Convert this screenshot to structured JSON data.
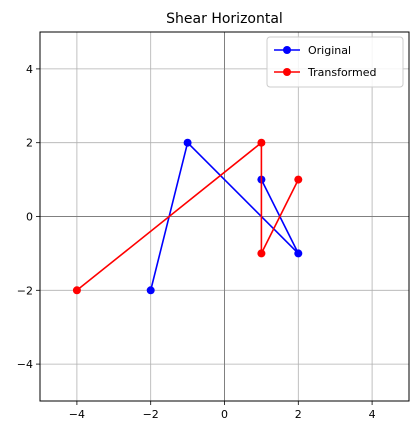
{
  "chart_data": {
    "type": "line",
    "title": "Shear Horizontal",
    "xlabel": "",
    "ylabel": "",
    "xlim": [
      -5,
      5
    ],
    "ylim": [
      -5,
      5
    ],
    "x_ticks": [
      -4,
      -2,
      0,
      2,
      4
    ],
    "y_ticks": [
      -4,
      -2,
      0,
      2,
      4
    ],
    "x_tick_labels": [
      "−4",
      "−2",
      "0",
      "2",
      "4"
    ],
    "y_tick_labels": [
      "−4",
      "−2",
      "0",
      "2",
      "4"
    ],
    "grid": true,
    "axis_lines_at_zero": true,
    "legend_position": "top-right",
    "series": [
      {
        "name": "Original",
        "color": "#0000ff",
        "marker": "circle",
        "points": [
          [
            -2,
            -2
          ],
          [
            -1,
            2
          ],
          [
            2,
            -1
          ],
          [
            1,
            1
          ]
        ]
      },
      {
        "name": "Transformed",
        "color": "#ff0000",
        "marker": "circle",
        "points": [
          [
            -4,
            -2
          ],
          [
            1,
            2
          ],
          [
            1,
            -1
          ],
          [
            2,
            1
          ]
        ]
      }
    ]
  }
}
